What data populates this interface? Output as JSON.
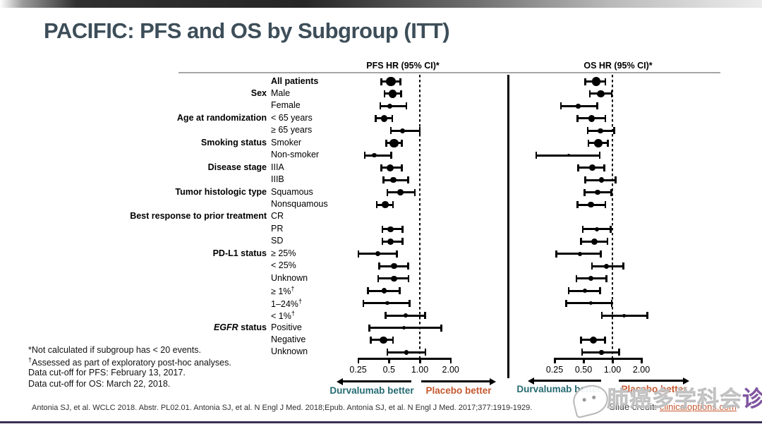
{
  "slide": {
    "title": "PACIFIC: PFS and OS by Subgroup (ITT)",
    "footnotes": [
      "*Not calculated if subgroup has < 20 events.",
      "†Assessed as part of exploratory post-hoc analyses.",
      "Data cut-off for PFS: February 13, 2017.",
      "Data cut-off for OS: March 22, 2018."
    ],
    "citation": "Antonia SJ, et al. WCLC 2018. Abstr. PL02.01. Antonia SJ, et al. N Engl J Med. 2018;Epub. Antonia SJ, et al. N Engl J Med. 2017;377:1919-1929.",
    "credit_label": "Slide credit: ",
    "credit_link": "clinicaloptions.com",
    "watermark_text": "肺癌多学科会",
    "watermark_last_char": "诊"
  },
  "colors": {
    "title": "#3d4e59",
    "durvalumab_label": "#266b72",
    "placebo_label": "#c4582f",
    "credit_link": "#c4582f",
    "bottom_rule": "#3c2e54",
    "marker": "#000000"
  },
  "chart_data": {
    "type": "scatter",
    "variant": "forest-plot-pair",
    "x_scale": "log2",
    "x_range": [
      0.25,
      2.0
    ],
    "reference_line": 1.0,
    "rows": [
      {
        "group": "",
        "label": "All patients",
        "bold": true
      },
      {
        "group": "Sex",
        "label": "Male"
      },
      {
        "group": "",
        "label": "Female"
      },
      {
        "group": "Age at randomization",
        "label": "< 65 years"
      },
      {
        "group": "",
        "label": "≥ 65 years"
      },
      {
        "group": "Smoking status",
        "label": "Smoker"
      },
      {
        "group": "",
        "label": "Non-smoker"
      },
      {
        "group": "Disease stage",
        "label": "IIIA"
      },
      {
        "group": "",
        "label": "IIIB"
      },
      {
        "group": "Tumor histologic type",
        "label": "Squamous"
      },
      {
        "group": "",
        "label": "Nonsquamous"
      },
      {
        "group": "Best response to prior treatment",
        "label": "CR"
      },
      {
        "group": "",
        "label": "PR"
      },
      {
        "group": "",
        "label": "SD"
      },
      {
        "group": "PD-L1 status",
        "label": "≥ 25%"
      },
      {
        "group": "",
        "label": "< 25%"
      },
      {
        "group": "",
        "label": "Unknown"
      },
      {
        "group": "",
        "label": "≥ 1%†"
      },
      {
        "group": "",
        "label": "1–24%†"
      },
      {
        "group": "",
        "label": "< 1%†"
      },
      {
        "group": "EGFR status",
        "group_italic": "EGFR",
        "group_rest": " status",
        "label": "Positive"
      },
      {
        "group": "",
        "label": "Negative"
      },
      {
        "group": "",
        "label": "Unknown"
      }
    ],
    "charts": [
      {
        "title": "PFS HR (95% CI)*",
        "tick_values": [
          0.25,
          0.5,
          1.0,
          2.0
        ],
        "tick_labels": [
          "0.25",
          "0.5",
          "1.00",
          "2.00"
        ],
        "arrow_left_label": "Durvalumab better",
        "arrow_right_label": "Placebo better",
        "points": [
          {
            "hr": 0.52,
            "lo": 0.42,
            "hi": 0.65,
            "size": 11
          },
          {
            "hr": 0.54,
            "lo": 0.45,
            "hi": 0.66,
            "size": 9
          },
          {
            "hr": 0.51,
            "lo": 0.41,
            "hi": 0.74,
            "size": 6
          },
          {
            "hr": 0.45,
            "lo": 0.37,
            "hi": 0.54,
            "size": 7.5
          },
          {
            "hr": 0.68,
            "lo": 0.52,
            "hi": 1.0,
            "size": 6
          },
          {
            "hr": 0.56,
            "lo": 0.47,
            "hi": 0.67,
            "size": 10
          },
          {
            "hr": 0.36,
            "lo": 0.29,
            "hi": 0.53,
            "size": 5
          },
          {
            "hr": 0.51,
            "lo": 0.42,
            "hi": 0.67,
            "size": 8
          },
          {
            "hr": 0.55,
            "lo": 0.44,
            "hi": 0.77,
            "size": 7
          },
          {
            "hr": 0.65,
            "lo": 0.48,
            "hi": 0.9,
            "size": 7
          },
          {
            "hr": 0.46,
            "lo": 0.38,
            "hi": 0.55,
            "size": 7.5
          },
          null,
          {
            "hr": 0.52,
            "lo": 0.43,
            "hi": 0.68,
            "size": 7
          },
          {
            "hr": 0.52,
            "lo": 0.43,
            "hi": 0.68,
            "size": 7.5
          },
          {
            "hr": 0.39,
            "lo": 0.25,
            "hi": 0.6,
            "size": 5.5
          },
          {
            "hr": 0.56,
            "lo": 0.4,
            "hi": 0.77,
            "size": 6.5
          },
          {
            "hr": 0.56,
            "lo": 0.39,
            "hi": 0.78,
            "size": 6.5
          },
          {
            "hr": 0.45,
            "lo": 0.31,
            "hi": 0.64,
            "size": 6
          },
          {
            "hr": 0.48,
            "lo": 0.28,
            "hi": 0.8,
            "size": 4.5
          },
          {
            "hr": 0.73,
            "lo": 0.46,
            "hi": 1.13,
            "size": 5
          },
          {
            "hr": 0.7,
            "lo": 0.32,
            "hi": 1.63,
            "size": 4
          },
          {
            "hr": 0.44,
            "lo": 0.33,
            "hi": 0.55,
            "size": 8.5
          },
          {
            "hr": 0.74,
            "lo": 0.48,
            "hi": 1.14,
            "size": 5.5
          }
        ]
      },
      {
        "title": "OS HR (95% CI)*",
        "tick_values": [
          0.25,
          0.5,
          1.0,
          2.0
        ],
        "tick_labels": [
          "0.25",
          "0.50",
          "1.00",
          "2.00"
        ],
        "arrow_left_label": "Durvalumab better",
        "arrow_right_label": "Placebo better",
        "points": [
          {
            "hr": 0.68,
            "lo": 0.52,
            "hi": 0.85,
            "size": 10
          },
          {
            "hr": 0.76,
            "lo": 0.58,
            "hi": 0.99,
            "size": 8.5
          },
          {
            "hr": 0.44,
            "lo": 0.29,
            "hi": 0.7,
            "size": 5
          },
          {
            "hr": 0.61,
            "lo": 0.43,
            "hi": 0.85,
            "size": 7.5
          },
          {
            "hr": 0.75,
            "lo": 0.55,
            "hi": 1.05,
            "size": 6
          },
          {
            "hr": 0.71,
            "lo": 0.56,
            "hi": 0.9,
            "size": 9.5
          },
          {
            "hr": 0.35,
            "lo": 0.16,
            "hi": 0.74,
            "size": 3.5
          },
          {
            "hr": 0.62,
            "lo": 0.44,
            "hi": 0.83,
            "size": 7
          },
          {
            "hr": 0.77,
            "lo": 0.52,
            "hi": 1.08,
            "size": 6
          },
          {
            "hr": 0.7,
            "lo": 0.51,
            "hi": 0.98,
            "size": 6
          },
          {
            "hr": 0.6,
            "lo": 0.43,
            "hi": 0.85,
            "size": 7
          },
          null,
          {
            "hr": 0.69,
            "lo": 0.49,
            "hi": 0.96,
            "size": 5
          },
          {
            "hr": 0.65,
            "lo": 0.47,
            "hi": 0.89,
            "size": 7.5
          },
          {
            "hr": 0.46,
            "lo": 0.26,
            "hi": 0.76,
            "size": 5
          },
          {
            "hr": 0.87,
            "lo": 0.61,
            "hi": 1.3,
            "size": 5.5
          },
          {
            "hr": 0.6,
            "lo": 0.42,
            "hi": 0.87,
            "size": 5.5
          },
          {
            "hr": 0.52,
            "lo": 0.35,
            "hi": 0.75,
            "size": 5
          },
          {
            "hr": 0.6,
            "lo": 0.33,
            "hi": 0.99,
            "size": 4
          },
          {
            "hr": 1.33,
            "lo": 0.77,
            "hi": 2.32,
            "size": 4
          },
          null,
          {
            "hr": 0.63,
            "lo": 0.47,
            "hi": 0.84,
            "size": 8
          },
          {
            "hr": 0.77,
            "lo": 0.48,
            "hi": 1.18,
            "size": 5
          }
        ]
      }
    ]
  }
}
